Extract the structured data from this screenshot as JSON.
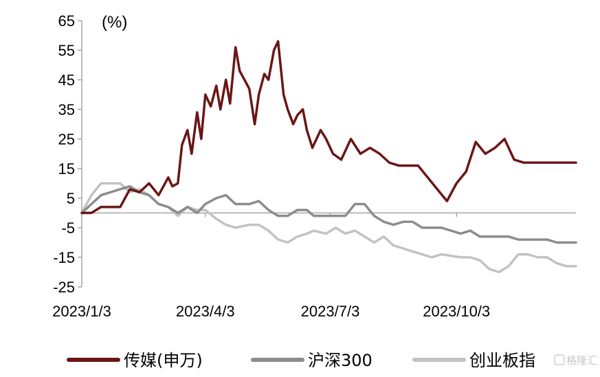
{
  "chart_data": {
    "type": "line",
    "unit_label": "(%)",
    "ylim": [
      -25,
      65
    ],
    "yticks": [
      65,
      55,
      45,
      35,
      25,
      15,
      5,
      -5,
      -15,
      -25
    ],
    "xtick_labels": [
      "2023/1/3",
      "2023/4/3",
      "2023/7/3",
      "2023/10/3"
    ],
    "grid": false,
    "legend_position": "bottom",
    "series": [
      {
        "name": "传媒(申万)",
        "color": "#6b1616",
        "x": [
          "2023/1/3",
          "2023/1/10",
          "2023/1/17",
          "2023/1/31",
          "2023/2/7",
          "2023/2/14",
          "2023/2/21",
          "2023/2/28",
          "2023/3/7",
          "2023/3/10",
          "2023/3/14",
          "2023/3/17",
          "2023/3/21",
          "2023/3/24",
          "2023/3/28",
          "2023/3/31",
          "2023/4/3",
          "2023/4/7",
          "2023/4/11",
          "2023/4/14",
          "2023/4/18",
          "2023/4/21",
          "2023/4/25",
          "2023/4/28",
          "2023/5/5",
          "2023/5/9",
          "2023/5/12",
          "2023/5/16",
          "2023/5/19",
          "2023/5/23",
          "2023/5/26",
          "2023/5/30",
          "2023/6/2",
          "2023/6/6",
          "2023/6/9",
          "2023/6/13",
          "2023/6/16",
          "2023/6/20",
          "2023/6/26",
          "2023/6/30",
          "2023/7/5",
          "2023/7/11",
          "2023/7/18",
          "2023/7/25",
          "2023/8/1",
          "2023/8/8",
          "2023/8/15",
          "2023/8/22",
          "2023/8/29",
          "2023/9/5",
          "2023/9/12",
          "2023/9/19",
          "2023/9/26",
          "2023/10/3",
          "2023/10/10",
          "2023/10/17",
          "2023/10/24",
          "2023/10/31",
          "2023/11/7",
          "2023/11/14",
          "2023/11/21",
          "2023/11/28",
          "2023/12/5",
          "2023/12/12",
          "2023/12/19",
          "2023/12/26",
          "2023/12/29"
        ],
        "y": [
          0,
          0,
          2,
          2,
          8,
          7,
          10,
          6,
          12,
          9,
          10,
          23,
          28,
          20,
          34,
          25,
          40,
          36,
          43,
          35,
          45,
          37,
          56,
          48,
          42,
          30,
          40,
          47,
          45,
          55,
          58,
          40,
          35,
          30,
          33,
          35,
          28,
          22,
          28,
          25,
          20,
          18,
          25,
          20,
          22,
          20,
          17,
          16,
          16,
          16,
          12,
          8,
          4,
          10,
          14,
          24,
          20,
          22,
          25,
          18,
          17,
          17,
          17,
          17,
          17,
          17,
          17
        ]
      },
      {
        "name": "沪深300",
        "color": "#8c8c8c",
        "x": [
          "2023/1/3",
          "2023/1/10",
          "2023/1/17",
          "2023/1/31",
          "2023/2/7",
          "2023/2/14",
          "2023/2/21",
          "2023/2/28",
          "2023/3/7",
          "2023/3/14",
          "2023/3/21",
          "2023/3/28",
          "2023/4/3",
          "2023/4/11",
          "2023/4/18",
          "2023/4/25",
          "2023/5/5",
          "2023/5/12",
          "2023/5/19",
          "2023/5/26",
          "2023/6/2",
          "2023/6/9",
          "2023/6/16",
          "2023/6/21",
          "2023/6/30",
          "2023/7/7",
          "2023/7/14",
          "2023/7/21",
          "2023/7/28",
          "2023/8/4",
          "2023/8/11",
          "2023/8/18",
          "2023/8/25",
          "2023/9/1",
          "2023/9/8",
          "2023/9/15",
          "2023/9/22",
          "2023/10/6",
          "2023/10/13",
          "2023/10/20",
          "2023/10/27",
          "2023/11/3",
          "2023/11/10",
          "2023/11/17",
          "2023/11/24",
          "2023/12/1",
          "2023/12/8",
          "2023/12/15",
          "2023/12/22",
          "2023/12/29"
        ],
        "y": [
          0,
          3,
          6,
          8,
          9,
          7,
          6,
          3,
          2,
          0,
          2,
          0,
          3,
          5,
          6,
          3,
          3,
          4,
          1,
          -1,
          -1,
          1,
          1,
          -1,
          -1,
          -1,
          -1,
          3,
          3,
          -1,
          -3,
          -4,
          -3,
          -3,
          -5,
          -5,
          -5,
          -7,
          -6,
          -8,
          -8,
          -8,
          -8,
          -9,
          -9,
          -9,
          -9,
          -10,
          -10,
          -10
        ]
      },
      {
        "name": "创业板指",
        "color": "#c2c2c2",
        "x": [
          "2023/1/3",
          "2023/1/10",
          "2023/1/17",
          "2023/1/31",
          "2023/2/7",
          "2023/2/14",
          "2023/2/21",
          "2023/2/28",
          "2023/3/7",
          "2023/3/14",
          "2023/3/21",
          "2023/3/28",
          "2023/4/3",
          "2023/4/11",
          "2023/4/18",
          "2023/4/25",
          "2023/5/5",
          "2023/5/12",
          "2023/5/19",
          "2023/5/26",
          "2023/6/2",
          "2023/6/9",
          "2023/6/16",
          "2023/6/21",
          "2023/6/30",
          "2023/7/7",
          "2023/7/14",
          "2023/7/21",
          "2023/7/28",
          "2023/8/4",
          "2023/8/11",
          "2023/8/18",
          "2023/8/25",
          "2023/9/1",
          "2023/9/8",
          "2023/9/15",
          "2023/9/22",
          "2023/10/6",
          "2023/10/13",
          "2023/10/20",
          "2023/10/27",
          "2023/11/3",
          "2023/11/10",
          "2023/11/17",
          "2023/11/24",
          "2023/12/1",
          "2023/12/8",
          "2023/12/15",
          "2023/12/22",
          "2023/12/29"
        ],
        "y": [
          0,
          6,
          10,
          10,
          7,
          8,
          6,
          3,
          2,
          -1,
          2,
          1,
          1,
          -2,
          -4,
          -5,
          -4,
          -4,
          -6,
          -9,
          -10,
          -8,
          -7,
          -6,
          -7,
          -5,
          -7,
          -6,
          -8,
          -10,
          -8,
          -11,
          -12,
          -13,
          -14,
          -15,
          -14,
          -15,
          -15,
          -16,
          -19,
          -20,
          -18,
          -14,
          -14,
          -15,
          -15,
          -17,
          -18,
          -18
        ]
      }
    ]
  },
  "watermark_text": "格隆汇"
}
